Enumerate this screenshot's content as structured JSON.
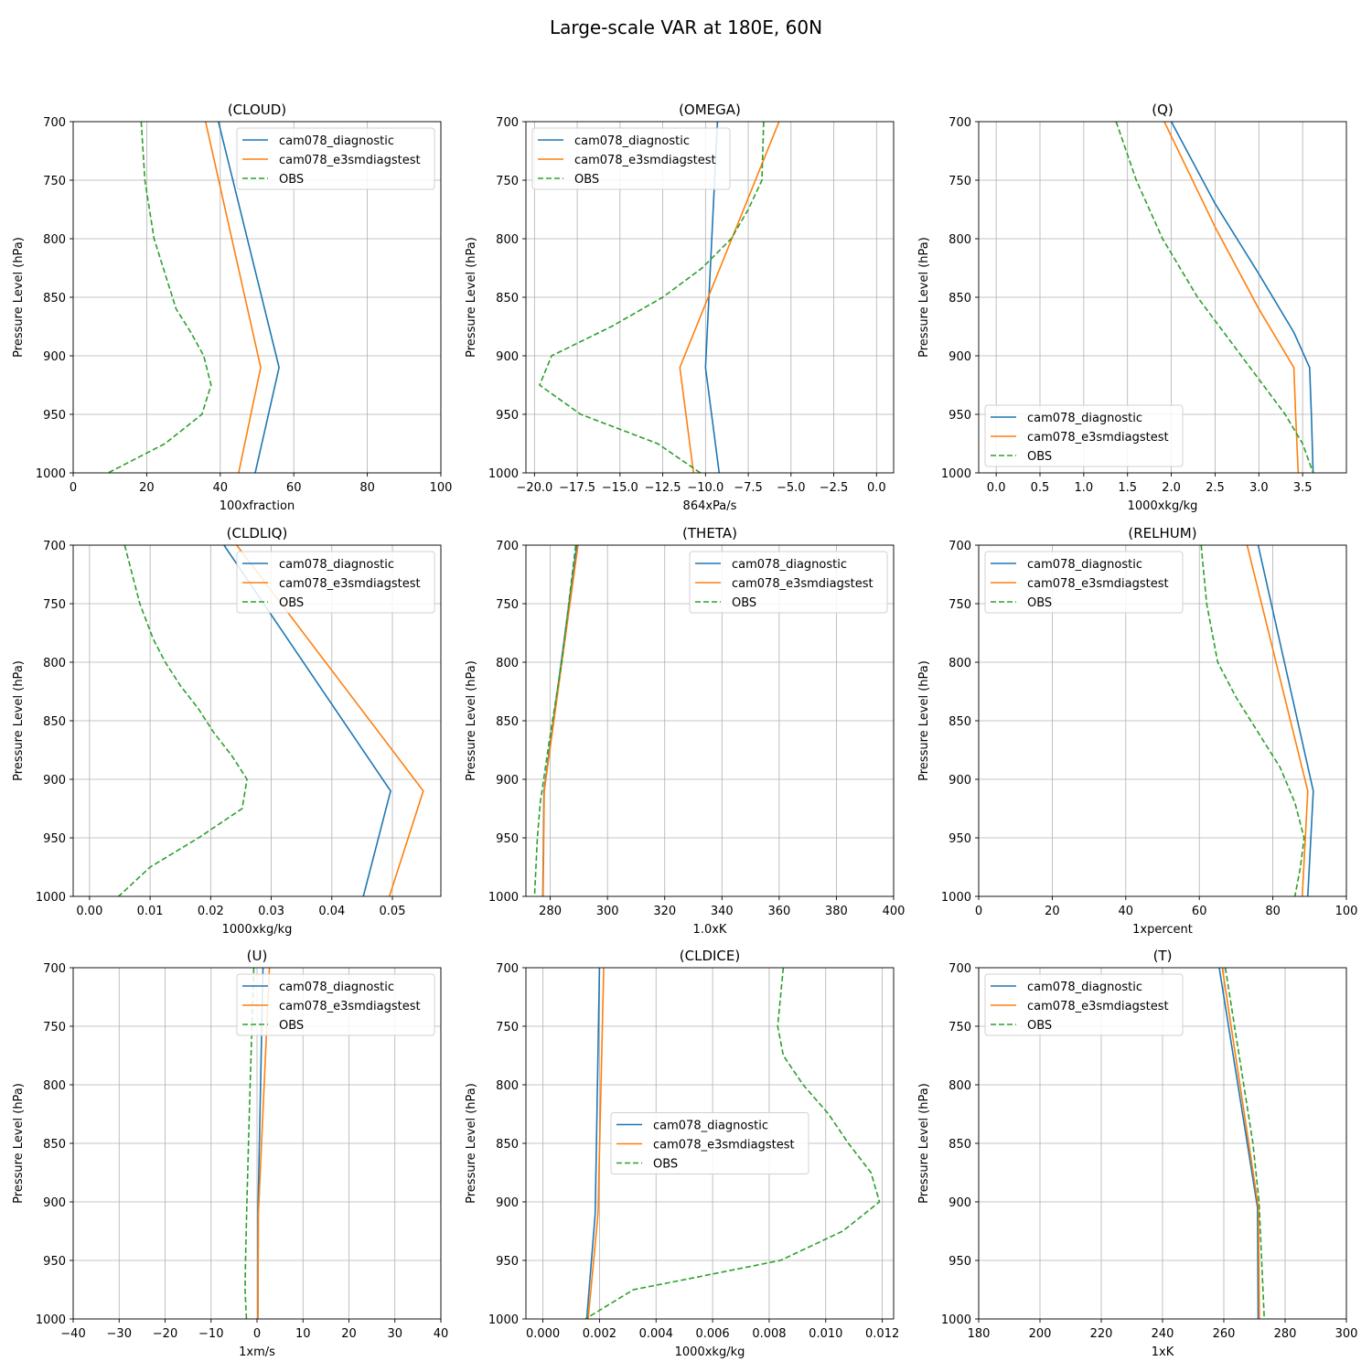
{
  "figure": {
    "title": "Large-scale VAR at 180E, 60N"
  },
  "colors": {
    "cam078_diagnostic": "#1f77b4",
    "cam078_e3smdiagstest": "#ff7f0e",
    "OBS": "#2ca02c",
    "grid": "#b0b0b0"
  },
  "chart_data": [
    {
      "type": "line",
      "title": "(CLOUD)",
      "xlabel": "100xfraction",
      "ylabel": "Pressure Level (hPa)",
      "xlim": [
        0,
        100
      ],
      "ylim": [
        1000,
        700
      ],
      "xticks": [
        0,
        20,
        40,
        60,
        80,
        100
      ],
      "xtick_labels": [
        "0",
        "20",
        "40",
        "60",
        "80",
        "100"
      ],
      "yticks": [
        700,
        750,
        800,
        850,
        900,
        950,
        1000
      ],
      "grid": true,
      "legend_position": "upper-right",
      "series": [
        {
          "name": "cam078_diagnostic",
          "style": "solid",
          "x": [
            39.5,
            56,
            49.5
          ],
          "y": [
            700,
            910,
            1000
          ]
        },
        {
          "name": "cam078_e3smdiagstest",
          "style": "solid",
          "x": [
            36,
            51,
            45
          ],
          "y": [
            700,
            910,
            1000
          ]
        },
        {
          "name": "OBS",
          "style": "dashed",
          "x": [
            18.5,
            19.5,
            22,
            25,
            28,
            32,
            35.5,
            37.5,
            35,
            25,
            9.5
          ],
          "y": [
            700,
            750,
            800,
            830,
            860,
            880,
            900,
            925,
            950,
            975,
            1000
          ]
        }
      ]
    },
    {
      "type": "line",
      "title": "(OMEGA)",
      "xlabel": "864xPa/s",
      "ylabel": "Pressure Level (hPa)",
      "xlim": [
        -20.5,
        1
      ],
      "ylim": [
        1000,
        700
      ],
      "xticks": [
        -20,
        -17.5,
        -15,
        -12.5,
        -10,
        -7.5,
        -5,
        -2.5,
        0
      ],
      "xtick_labels": [
        "−20.0",
        "−17.5",
        "−15.0",
        "−12.5",
        "−10.0",
        "−7.5",
        "−5.0",
        "−2.5",
        "0.0"
      ],
      "yticks": [
        700,
        750,
        800,
        850,
        900,
        950,
        1000
      ],
      "grid": true,
      "legend_position": "upper-left",
      "series": [
        {
          "name": "cam078_diagnostic",
          "style": "solid",
          "x": [
            -9.3,
            -10,
            -9.2
          ],
          "y": [
            700,
            910,
            1000
          ]
        },
        {
          "name": "cam078_e3smdiagstest",
          "style": "solid",
          "x": [
            -5.7,
            -11.5,
            -10.7
          ],
          "y": [
            700,
            910,
            1000
          ]
        },
        {
          "name": "OBS",
          "style": "dashed",
          "x": [
            -6.6,
            -6.7,
            -7.5,
            -8.5,
            -10.2,
            -12.5,
            -15.5,
            -19,
            -19.7,
            -17.3,
            -12.8,
            -10.3
          ],
          "y": [
            700,
            750,
            775,
            800,
            825,
            850,
            875,
            900,
            925,
            950,
            975,
            1000
          ]
        }
      ]
    },
    {
      "type": "line",
      "title": "(Q)",
      "xlabel": "1000xkg/kg",
      "ylabel": "Pressure Level (hPa)",
      "xlim": [
        -0.2,
        4.0
      ],
      "ylim": [
        1000,
        700
      ],
      "xticks": [
        0,
        0.5,
        1,
        1.5,
        2,
        2.5,
        3,
        3.5
      ],
      "xtick_labels": [
        "0.0",
        "0.5",
        "1.0",
        "1.5",
        "2.0",
        "2.5",
        "3.0",
        "3.5"
      ],
      "yticks": [
        700,
        750,
        800,
        850,
        900,
        950,
        1000
      ],
      "grid": true,
      "legend_position": "lower-left",
      "series": [
        {
          "name": "cam078_diagnostic",
          "style": "solid",
          "x": [
            2.0,
            2.5,
            3.0,
            3.4,
            3.58,
            3.6,
            3.62
          ],
          "y": [
            700,
            770,
            830,
            880,
            910,
            950,
            1000
          ]
        },
        {
          "name": "cam078_e3smdiagstest",
          "style": "solid",
          "x": [
            1.92,
            2.5,
            3.0,
            3.4,
            3.42,
            3.45
          ],
          "y": [
            700,
            790,
            860,
            910,
            950,
            1000
          ]
        },
        {
          "name": "OBS",
          "style": "dashed",
          "x": [
            1.37,
            1.6,
            1.9,
            2.3,
            2.7,
            3.0,
            3.3,
            3.5,
            3.62
          ],
          "y": [
            700,
            750,
            800,
            850,
            890,
            920,
            950,
            975,
            1000
          ]
        }
      ]
    },
    {
      "type": "line",
      "title": "(CLDLIQ)",
      "xlabel": "1000xkg/kg",
      "ylabel": "Pressure Level (hPa)",
      "xlim": [
        -0.0027,
        0.058
      ],
      "ylim": [
        1000,
        700
      ],
      "xticks": [
        0,
        0.01,
        0.02,
        0.03,
        0.04,
        0.05
      ],
      "xtick_labels": [
        "0.00",
        "0.01",
        "0.02",
        "0.03",
        "0.04",
        "0.05"
      ],
      "yticks": [
        700,
        750,
        800,
        850,
        900,
        950,
        1000
      ],
      "grid": true,
      "legend_position": "upper-right",
      "series": [
        {
          "name": "cam078_diagnostic",
          "style": "solid",
          "x": [
            0.0222,
            0.0497,
            0.0452
          ],
          "y": [
            700,
            910,
            1000
          ]
        },
        {
          "name": "cam078_e3smdiagstest",
          "style": "solid",
          "x": [
            0.0243,
            0.0551,
            0.0495
          ],
          "y": [
            700,
            910,
            1000
          ]
        },
        {
          "name": "OBS",
          "style": "dashed",
          "x": [
            0.0058,
            0.0083,
            0.0105,
            0.0125,
            0.015,
            0.018,
            0.0205,
            0.0235,
            0.026,
            0.0252,
            0.018,
            0.01,
            0.0048
          ],
          "y": [
            700,
            750,
            780,
            800,
            820,
            840,
            860,
            880,
            900,
            925,
            950,
            975,
            1000
          ]
        }
      ]
    },
    {
      "type": "line",
      "title": "(THETA)",
      "xlabel": "1.0xK",
      "ylabel": "Pressure Level (hPa)",
      "xlim": [
        271.5,
        400
      ],
      "ylim": [
        1000,
        700
      ],
      "xticks": [
        280,
        300,
        320,
        340,
        360,
        380,
        400
      ],
      "xtick_labels": [
        "280",
        "300",
        "320",
        "340",
        "360",
        "380",
        "400"
      ],
      "yticks": [
        700,
        750,
        800,
        850,
        900,
        950,
        1000
      ],
      "grid": true,
      "legend_position": "upper-right",
      "series": [
        {
          "name": "cam078_diagnostic",
          "style": "solid",
          "x": [
            289.3,
            277.8,
            277.4
          ],
          "y": [
            700,
            910,
            1000
          ]
        },
        {
          "name": "cam078_e3smdiagstest",
          "style": "solid",
          "x": [
            289.7,
            277.9,
            277.5
          ],
          "y": [
            700,
            910,
            1000
          ]
        },
        {
          "name": "OBS",
          "style": "dashed",
          "x": [
            288.9,
            284,
            279.5,
            276.5,
            275.5,
            274.5
          ],
          "y": [
            700,
            800,
            870,
            920,
            950,
            1000
          ]
        }
      ]
    },
    {
      "type": "line",
      "title": "(RELHUM)",
      "xlabel": "1xpercent",
      "ylabel": "Pressure Level (hPa)",
      "xlim": [
        0,
        100
      ],
      "ylim": [
        1000,
        700
      ],
      "xticks": [
        0,
        20,
        40,
        60,
        80,
        100
      ],
      "xtick_labels": [
        "0",
        "20",
        "40",
        "60",
        "80",
        "100"
      ],
      "yticks": [
        700,
        750,
        800,
        850,
        900,
        950,
        1000
      ],
      "grid": true,
      "legend_position": "upper-left",
      "series": [
        {
          "name": "cam078_diagnostic",
          "style": "solid",
          "x": [
            76,
            91,
            89.5
          ],
          "y": [
            700,
            910,
            1000
          ]
        },
        {
          "name": "cam078_e3smdiagstest",
          "style": "solid",
          "x": [
            73,
            89.5,
            88
          ],
          "y": [
            700,
            910,
            1000
          ]
        },
        {
          "name": "OBS",
          "style": "dashed",
          "x": [
            60.5,
            62,
            65,
            70,
            76,
            82,
            86,
            88.5,
            87.5,
            86
          ],
          "y": [
            700,
            750,
            800,
            830,
            860,
            890,
            920,
            950,
            975,
            1000
          ]
        }
      ]
    },
    {
      "type": "line",
      "title": "(U)",
      "xlabel": "1xm/s",
      "ylabel": "Pressure Level (hPa)",
      "xlim": [
        -40,
        40
      ],
      "ylim": [
        1000,
        700
      ],
      "xticks": [
        -40,
        -30,
        -20,
        -10,
        0,
        10,
        20,
        30,
        40
      ],
      "xtick_labels": [
        "−40",
        "−30",
        "−20",
        "−10",
        "0",
        "10",
        "20",
        "30",
        "40"
      ],
      "yticks": [
        700,
        750,
        800,
        850,
        900,
        950,
        1000
      ],
      "grid": true,
      "legend_position": "upper-right",
      "series": [
        {
          "name": "cam078_diagnostic",
          "style": "solid",
          "x": [
            1.3,
            0.2,
            0.2
          ],
          "y": [
            700,
            910,
            1000
          ]
        },
        {
          "name": "cam078_e3smdiagstest",
          "style": "solid",
          "x": [
            2.7,
            0.3,
            0.2
          ],
          "y": [
            700,
            910,
            1000
          ]
        },
        {
          "name": "OBS",
          "style": "dashed",
          "x": [
            -0.7,
            -1.5,
            -2.2,
            -2.5,
            -2.6,
            -2.3
          ],
          "y": [
            700,
            800,
            900,
            950,
            975,
            1000
          ]
        }
      ]
    },
    {
      "type": "line",
      "title": "(CLDICE)",
      "xlabel": "1000xkg/kg",
      "ylabel": "Pressure Level (hPa)",
      "xlim": [
        -0.0006,
        0.0124
      ],
      "ylim": [
        1000,
        700
      ],
      "xticks": [
        0,
        0.002,
        0.004,
        0.006,
        0.008,
        0.01,
        0.012
      ],
      "xtick_labels": [
        "0.000",
        "0.002",
        "0.004",
        "0.006",
        "0.008",
        "0.010",
        "0.012"
      ],
      "yticks": [
        700,
        750,
        800,
        850,
        900,
        950,
        1000
      ],
      "grid": true,
      "legend_position": "center",
      "series": [
        {
          "name": "cam078_diagnostic",
          "style": "solid",
          "x": [
            0.002,
            0.00185,
            0.00155
          ],
          "y": [
            700,
            910,
            1000
          ]
        },
        {
          "name": "cam078_e3smdiagstest",
          "style": "solid",
          "x": [
            0.00215,
            0.00195,
            0.0016
          ],
          "y": [
            700,
            910,
            1000
          ]
        },
        {
          "name": "OBS",
          "style": "dashed",
          "x": [
            0.0085,
            0.0083,
            0.0085,
            0.0092,
            0.0101,
            0.0108,
            0.0116,
            0.0119,
            0.0106,
            0.0084,
            0.0053,
            0.0032,
            0.0015
          ],
          "y": [
            700,
            750,
            775,
            800,
            825,
            850,
            875,
            900,
            925,
            950,
            965,
            975,
            1000
          ]
        }
      ]
    },
    {
      "type": "line",
      "title": "(T)",
      "xlabel": "1xK",
      "ylabel": "Pressure Level (hPa)",
      "xlim": [
        180,
        300
      ],
      "ylim": [
        1000,
        700
      ],
      "xticks": [
        180,
        200,
        220,
        240,
        260,
        280,
        300
      ],
      "xtick_labels": [
        "180",
        "200",
        "220",
        "240",
        "260",
        "280",
        "300"
      ],
      "yticks": [
        700,
        750,
        800,
        850,
        900,
        950,
        1000
      ],
      "grid": true,
      "legend_position": "upper-left",
      "series": [
        {
          "name": "cam078_diagnostic",
          "style": "solid",
          "x": [
            258.5,
            271,
            271.2
          ],
          "y": [
            700,
            905,
            1000
          ]
        },
        {
          "name": "cam078_e3smdiagstest",
          "style": "solid",
          "x": [
            259.5,
            271.3,
            271.6
          ],
          "y": [
            700,
            905,
            1000
          ]
        },
        {
          "name": "OBS",
          "style": "dashed",
          "x": [
            260.5,
            263.5,
            266.5,
            269.5,
            271.5,
            273.2
          ],
          "y": [
            700,
            750,
            800,
            850,
            900,
            1000
          ]
        }
      ]
    }
  ]
}
